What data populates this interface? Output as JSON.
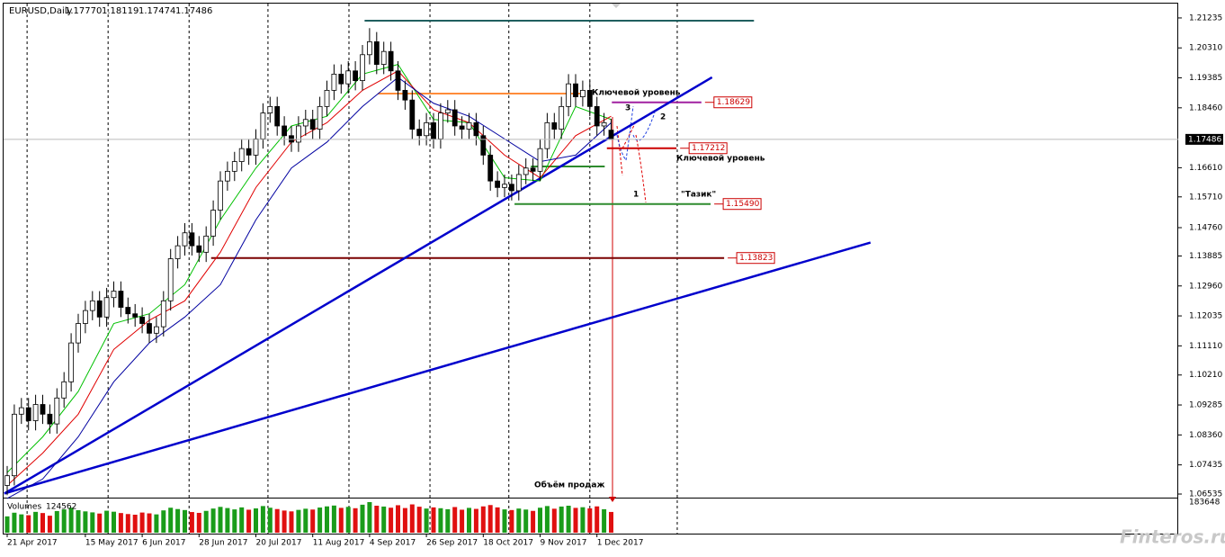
{
  "chart_data": {
    "type": "candlestick",
    "title": "EURUSD,Daily",
    "header_values": [
      "1.17770",
      "1.18119",
      "1.17474",
      "1.17486"
    ],
    "candles": [
      [
        1.068,
        1.074,
        1.065,
        1.071
      ],
      [
        1.071,
        1.093,
        1.068,
        1.09
      ],
      [
        1.09,
        1.095,
        1.087,
        1.092
      ],
      [
        1.092,
        1.095,
        1.085,
        1.088
      ],
      [
        1.088,
        1.096,
        1.085,
        1.093
      ],
      [
        1.093,
        1.096,
        1.087,
        1.09
      ],
      [
        1.09,
        1.093,
        1.084,
        1.087
      ],
      [
        1.087,
        1.098,
        1.084,
        1.095
      ],
      [
        1.095,
        1.103,
        1.092,
        1.1
      ],
      [
        1.1,
        1.115,
        1.097,
        1.112
      ],
      [
        1.112,
        1.121,
        1.109,
        1.118
      ],
      [
        1.118,
        1.125,
        1.115,
        1.122
      ],
      [
        1.122,
        1.128,
        1.119,
        1.125
      ],
      [
        1.125,
        1.128,
        1.117,
        1.12
      ],
      [
        1.12,
        1.129,
        1.117,
        1.126
      ],
      [
        1.126,
        1.131,
        1.123,
        1.128
      ],
      [
        1.128,
        1.131,
        1.12,
        1.123
      ],
      [
        1.123,
        1.126,
        1.118,
        1.121
      ],
      [
        1.121,
        1.124,
        1.117,
        1.12
      ],
      [
        1.12,
        1.123,
        1.115,
        1.118
      ],
      [
        1.118,
        1.121,
        1.112,
        1.115
      ],
      [
        1.115,
        1.12,
        1.112,
        1.117
      ],
      [
        1.117,
        1.128,
        1.114,
        1.125
      ],
      [
        1.125,
        1.141,
        1.122,
        1.138
      ],
      [
        1.138,
        1.145,
        1.135,
        1.142
      ],
      [
        1.142,
        1.149,
        1.139,
        1.146
      ],
      [
        1.146,
        1.149,
        1.139,
        1.142
      ],
      [
        1.142,
        1.145,
        1.137,
        1.14
      ],
      [
        1.14,
        1.148,
        1.137,
        1.145
      ],
      [
        1.145,
        1.156,
        1.142,
        1.153
      ],
      [
        1.153,
        1.165,
        1.15,
        1.162
      ],
      [
        1.162,
        1.168,
        1.159,
        1.165
      ],
      [
        1.165,
        1.171,
        1.162,
        1.168
      ],
      [
        1.168,
        1.175,
        1.165,
        1.172
      ],
      [
        1.172,
        1.175,
        1.167,
        1.17
      ],
      [
        1.17,
        1.178,
        1.167,
        1.175
      ],
      [
        1.175,
        1.186,
        1.172,
        1.183
      ],
      [
        1.183,
        1.188,
        1.18,
        1.185
      ],
      [
        1.185,
        1.188,
        1.176,
        1.179
      ],
      [
        1.179,
        1.182,
        1.173,
        1.176
      ],
      [
        1.176,
        1.179,
        1.171,
        1.174
      ],
      [
        1.174,
        1.182,
        1.171,
        1.179
      ],
      [
        1.179,
        1.184,
        1.176,
        1.181
      ],
      [
        1.181,
        1.184,
        1.175,
        1.178
      ],
      [
        1.178,
        1.188,
        1.175,
        1.185
      ],
      [
        1.185,
        1.193,
        1.182,
        1.19
      ],
      [
        1.19,
        1.198,
        1.187,
        1.195
      ],
      [
        1.195,
        1.198,
        1.189,
        1.192
      ],
      [
        1.192,
        1.199,
        1.189,
        1.196
      ],
      [
        1.196,
        1.199,
        1.19,
        1.193
      ],
      [
        1.193,
        1.204,
        1.19,
        1.201
      ],
      [
        1.201,
        1.2092,
        1.198,
        1.205
      ],
      [
        1.205,
        1.208,
        1.195,
        1.198
      ],
      [
        1.198,
        1.205,
        1.195,
        1.202
      ],
      [
        1.202,
        1.205,
        1.193,
        1.196
      ],
      [
        1.196,
        1.199,
        1.187,
        1.19
      ],
      [
        1.19,
        1.193,
        1.184,
        1.187
      ],
      [
        1.187,
        1.19,
        1.175,
        1.178
      ],
      [
        1.178,
        1.181,
        1.173,
        1.176
      ],
      [
        1.176,
        1.183,
        1.173,
        1.18
      ],
      [
        1.18,
        1.183,
        1.172,
        1.175
      ],
      [
        1.175,
        1.186,
        1.172,
        1.183
      ],
      [
        1.183,
        1.187,
        1.18,
        1.184
      ],
      [
        1.184,
        1.187,
        1.176,
        1.179
      ],
      [
        1.179,
        1.182,
        1.175,
        1.178
      ],
      [
        1.178,
        1.183,
        1.175,
        1.18
      ],
      [
        1.18,
        1.183,
        1.173,
        1.176
      ],
      [
        1.176,
        1.179,
        1.167,
        1.17
      ],
      [
        1.17,
        1.173,
        1.159,
        1.162
      ],
      [
        1.162,
        1.165,
        1.157,
        1.16
      ],
      [
        1.16,
        1.164,
        1.157,
        1.161
      ],
      [
        1.161,
        1.164,
        1.156,
        1.159
      ],
      [
        1.159,
        1.167,
        1.156,
        1.164
      ],
      [
        1.164,
        1.169,
        1.161,
        1.166
      ],
      [
        1.166,
        1.169,
        1.162,
        1.165
      ],
      [
        1.165,
        1.175,
        1.162,
        1.172
      ],
      [
        1.172,
        1.183,
        1.169,
        1.18
      ],
      [
        1.18,
        1.183,
        1.175,
        1.178
      ],
      [
        1.178,
        1.188,
        1.175,
        1.185
      ],
      [
        1.185,
        1.195,
        1.182,
        1.192
      ],
      [
        1.192,
        1.195,
        1.185,
        1.188
      ],
      [
        1.188,
        1.193,
        1.185,
        1.19
      ],
      [
        1.19,
        1.193,
        1.182,
        1.185
      ],
      [
        1.185,
        1.188,
        1.176,
        1.179
      ],
      [
        1.179,
        1.183,
        1.176,
        1.18
      ],
      [
        1.1777,
        1.18119,
        1.17474,
        1.17486
      ]
    ],
    "volumes": [
      98000,
      120000,
      110000,
      105000,
      125000,
      118000,
      102000,
      130000,
      140000,
      150000,
      135000,
      128000,
      122000,
      115000,
      132000,
      126000,
      118000,
      112000,
      108000,
      121000,
      116000,
      110000,
      134000,
      150000,
      142000,
      136000,
      124000,
      119000,
      131000,
      145000,
      155000,
      148000,
      140000,
      152000,
      138000,
      146000,
      160000,
      150000,
      142000,
      133000,
      128000,
      137000,
      144000,
      139000,
      151000,
      158000,
      163000,
      149000,
      155000,
      147000,
      168000,
      183648,
      162000,
      157000,
      150000,
      165000,
      148000,
      170000,
      156000,
      145000,
      152000,
      147000,
      141000,
      154000,
      138000,
      149000,
      143000,
      158000,
      166000,
      152000,
      140000,
      136000,
      145000,
      139000,
      131000,
      150000,
      160000,
      144000,
      157000,
      162000,
      149000,
      153000,
      146000,
      158000,
      141000,
      124562
    ],
    "volume_title": "Volumes",
    "vlim": [
      0,
      183648
    ],
    "vticks": [
      183648
    ],
    "ma_series": [
      {
        "color": "#00c000",
        "x": [
          0,
          5,
          10,
          15,
          20,
          25,
          30,
          35,
          40,
          45,
          50,
          55,
          60,
          65,
          70,
          75,
          80,
          85
        ],
        "values": [
          1.072,
          1.083,
          1.097,
          1.118,
          1.121,
          1.13,
          1.15,
          1.166,
          1.179,
          1.182,
          1.195,
          1.198,
          1.181,
          1.18,
          1.163,
          1.162,
          1.185,
          1.181
        ]
      },
      {
        "color": "#e00000",
        "x": [
          0,
          5,
          10,
          15,
          20,
          25,
          30,
          35,
          40,
          45,
          50,
          55,
          60,
          65,
          70,
          75,
          80,
          85
        ],
        "values": [
          1.068,
          1.078,
          1.09,
          1.11,
          1.119,
          1.125,
          1.14,
          1.16,
          1.174,
          1.18,
          1.19,
          1.196,
          1.184,
          1.18,
          1.17,
          1.163,
          1.176,
          1.182
        ]
      },
      {
        "color": "#0000a0",
        "x": [
          0,
          5,
          10,
          15,
          20,
          25,
          30,
          35,
          40,
          45,
          50,
          55,
          60,
          65,
          70,
          75,
          80,
          85
        ],
        "values": [
          1.064,
          1.07,
          1.083,
          1.1,
          1.112,
          1.12,
          1.13,
          1.15,
          1.166,
          1.174,
          1.185,
          1.194,
          1.186,
          1.182,
          1.175,
          1.168,
          1.17,
          1.18
        ]
      }
    ],
    "trendlines": [
      {
        "x": [
          -0.4,
          99.2
        ],
        "values": [
          1.0655,
          1.194
        ]
      },
      {
        "x": [
          -0.4,
          121.5
        ],
        "values": [
          1.0655,
          1.143
        ]
      }
    ],
    "levels": [
      {
        "value": 1.2115,
        "x": [
          50.3,
          105.1
        ],
        "color": "#1f5f5f"
      },
      {
        "value": 1.189,
        "x": [
          52.2,
          81.3
        ],
        "color": "#ff8c3a"
      },
      {
        "value": 1.18629,
        "label": "1.18629",
        "x": [
          85.1,
          97.7
        ],
        "color": "#a020a0"
      },
      {
        "value": 1.17212,
        "label": "1.17212",
        "x": [
          84.4,
          94.2
        ],
        "color": "#cc0000"
      },
      {
        "value": 1.1665,
        "x": [
          73.7,
          84.1
        ],
        "color": "#2e8b2e"
      },
      {
        "value": 1.1549,
        "label": "1.15490",
        "x": [
          71.4,
          99.0
        ],
        "color": "#2e8b2e"
      },
      {
        "value": 1.13823,
        "label": "1.13823",
        "x": [
          28.7,
          100.9
        ],
        "color": "#7a0000"
      }
    ],
    "annotations": [
      "Ключевой уровень",
      "Ключевой уровень",
      "3",
      "2",
      "1",
      "\"Тазик\"",
      "Объём продаж"
    ],
    "ylim": [
      1.0648,
      1.2165
    ],
    "yticks": [
      1.21235,
      {
        "value": 1.2031,
        "label": "1.20310"
      },
      1.19385,
      {
        "value": 1.1846,
        "label": "1.18460"
      },
      {
        "value": 1.1661,
        "label": "1.16610"
      },
      {
        "value": 1.1571,
        "label": "1.15710"
      },
      {
        "value": 1.1476,
        "label": "1.14760"
      },
      1.13885,
      {
        "value": 1.1296,
        "label": "1.12960"
      },
      1.12035,
      {
        "value": 1.1111,
        "label": "1.11110"
      },
      {
        "value": 1.1021,
        "label": "1.10210"
      },
      1.09285,
      {
        "value": 1.0836,
        "label": "1.08360"
      },
      1.07435,
      1.06535
    ],
    "xlim": [
      0,
      85
    ],
    "xticks": [
      {
        "value": 0,
        "label": "21 Apr 2017"
      },
      {
        "value": 11,
        "label": "15 May 2017"
      },
      {
        "value": 19,
        "label": "6 Jun 2017"
      },
      {
        "value": 27,
        "label": "28 Jun 2017"
      },
      {
        "value": 35,
        "label": "20 Jul 2017"
      },
      {
        "value": 43,
        "label": "11 Aug 2017"
      },
      {
        "value": 51,
        "label": "4 Sep 2017"
      },
      {
        "value": 59,
        "label": "26 Sep 2017"
      },
      {
        "value": 67,
        "label": "18 Oct 2017"
      },
      {
        "value": 75,
        "label": "9 Nov 2017"
      },
      {
        "value": 83,
        "label": "1 Dec 2017"
      }
    ],
    "xgrid": [
      2.8,
      14.2,
      25.6,
      36.7,
      48.1,
      59.5,
      70.6,
      82,
      94.3
    ],
    "watermark": "Finteros.ru"
  }
}
